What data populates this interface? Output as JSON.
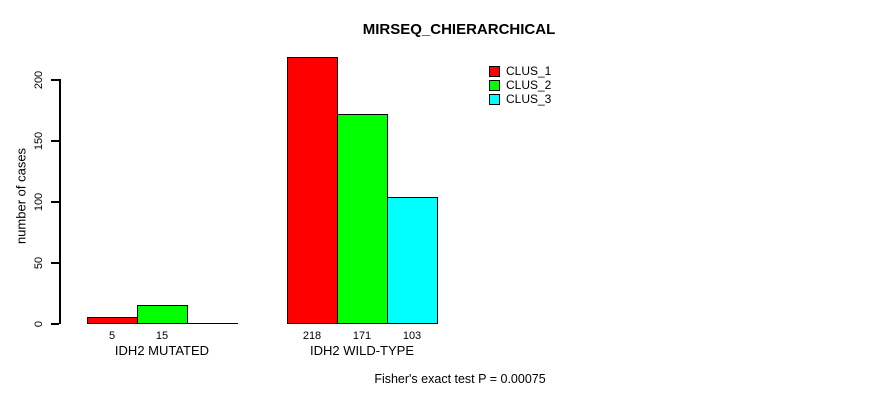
{
  "chart_data": {
    "type": "bar",
    "title": "MIRSEQ_CHIERARCHICAL",
    "ylabel": "number of cases",
    "xlabel": "",
    "categories": [
      "IDH2 MUTATED",
      "IDH2 WILD-TYPE"
    ],
    "series": [
      {
        "name": "CLUS_1",
        "color": "#ff0000",
        "values": [
          5,
          218
        ]
      },
      {
        "name": "CLUS_2",
        "color": "#00ff00",
        "values": [
          15,
          171
        ]
      },
      {
        "name": "CLUS_3",
        "color": "#00ffff",
        "values": [
          0,
          103
        ]
      }
    ],
    "bar_value_labels": [
      [
        "5",
        "15",
        ""
      ],
      [
        "218",
        "171",
        "103"
      ]
    ],
    "yticks": [
      0,
      50,
      100,
      150,
      200
    ],
    "ylim": [
      0,
      220
    ],
    "grid": false,
    "legend_position": "top-right",
    "annotation": "Fisher's exact test P = 0.00075",
    "background": "#ffffff",
    "bar_border_color": "#000000"
  }
}
